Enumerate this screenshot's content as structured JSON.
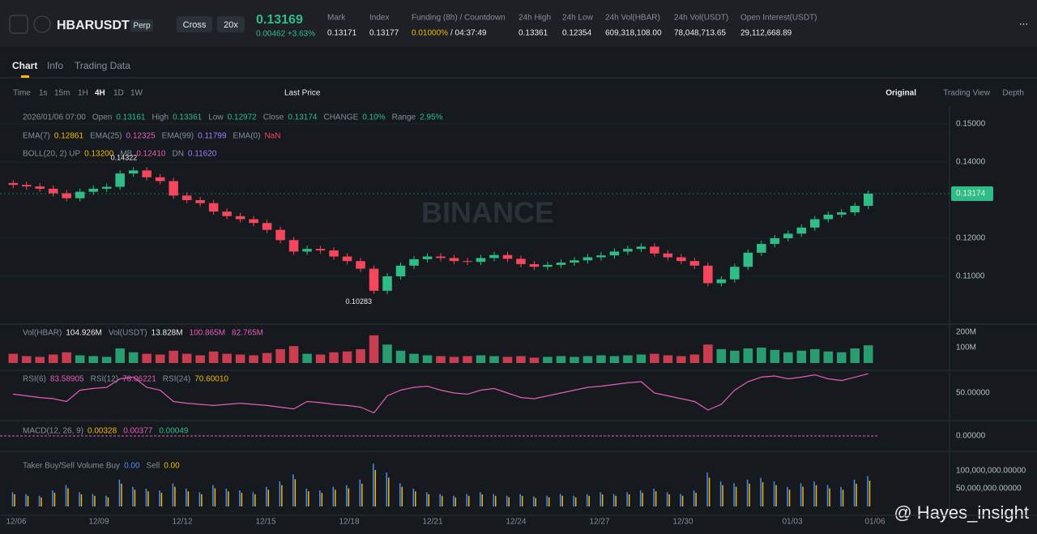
{
  "header": {
    "symbol": "HBARUSDT",
    "tag": "Perp",
    "margin": "Cross",
    "leverage": "20x",
    "price": "0.13169",
    "change": "0.00462 +3.63%",
    "stats": [
      {
        "label": "Mark",
        "value": "0.13171"
      },
      {
        "label": "Index",
        "value": "0.13177"
      },
      {
        "label": "Funding (8h) / Countdown",
        "value": "0.01000%",
        "value2": "/ 04:37:49"
      },
      {
        "label": "24h High",
        "value": "0.13361"
      },
      {
        "label": "24h Low",
        "value": "0.12354"
      },
      {
        "label": "24h Vol(HBAR)",
        "value": "609,318,108.00"
      },
      {
        "label": "24h Vol(USDT)",
        "value": "78,048,713.65"
      },
      {
        "label": "Open Interest(USDT)",
        "value": "29,112,668.89"
      }
    ]
  },
  "tabs": [
    "Chart",
    "Info",
    "Trading Data"
  ],
  "toolbar": {
    "intervals": [
      "Time",
      "1s",
      "15m",
      "1H",
      "4H",
      "1D",
      "1W"
    ],
    "price_type": "Last Price",
    "views": [
      "Original",
      "Trading View",
      "Depth"
    ]
  },
  "legend": {
    "date": "2026/01/06 07:00",
    "ohlc": [
      {
        "label": "Open",
        "value": "0.13161"
      },
      {
        "label": "High",
        "value": "0.13361"
      },
      {
        "label": "Low",
        "value": "0.12972"
      },
      {
        "label": "Close",
        "value": "0.13174"
      },
      {
        "label": "CHANGE",
        "value": "0.10%"
      },
      {
        "label": "Range",
        "value": "2.95%"
      }
    ],
    "ema": [
      {
        "label": "EMA(7)",
        "value": "0.12861"
      },
      {
        "label": "EMA(25)",
        "value": "0.12325"
      },
      {
        "label": "EMA(99)",
        "value": "0.11799"
      },
      {
        "label": "EMA(0)",
        "value": "NaN"
      }
    ],
    "boll": [
      {
        "label": "BOLL(20, 2)  UP",
        "value": "0.13200"
      },
      {
        "label": "MB",
        "value": "0.12410"
      },
      {
        "label": "DN",
        "value": "0.11620"
      }
    ]
  },
  "price": {
    "watermark": "BINANCE",
    "high_label": "0.14322",
    "low_label": "0.10283",
    "last_label": "0.13174",
    "axis": [
      {
        "value": 0.15,
        "label": "0.15000"
      },
      {
        "value": 0.14,
        "label": "0.14000"
      },
      {
        "value": 0.12,
        "label": "0.12000"
      },
      {
        "value": 0.11,
        "label": "0.11000"
      }
    ],
    "first_open": 0.1345,
    "closes": [
      0.134,
      0.1336,
      0.133,
      0.1318,
      0.1305,
      0.1322,
      0.133,
      0.1335,
      0.137,
      0.1378,
      0.136,
      0.135,
      0.1312,
      0.13,
      0.1292,
      0.127,
      0.1258,
      0.125,
      0.124,
      0.1222,
      0.1195,
      0.1165,
      0.1172,
      0.1168,
      0.1152,
      0.114,
      0.112,
      0.1062,
      0.11,
      0.1128,
      0.1145,
      0.1152,
      0.1148,
      0.114,
      0.1138,
      0.1148,
      0.1156,
      0.1146,
      0.1132,
      0.1125,
      0.113,
      0.1136,
      0.1142,
      0.115,
      0.1155,
      0.1165,
      0.1172,
      0.1178,
      0.116,
      0.115,
      0.114,
      0.1128,
      0.1082,
      0.1092,
      0.1125,
      0.1162,
      0.1185,
      0.12,
      0.1212,
      0.1228,
      0.125,
      0.1262,
      0.1268,
      0.1285,
      0.1317
    ]
  },
  "volume": {
    "legend": [
      {
        "label": "Vol(HBAR)",
        "value": "104.926M"
      },
      {
        "label": "Vol(USDT)",
        "value": "13.828M"
      },
      {
        "label": "",
        "value": "100.865M"
      },
      {
        "label": "",
        "value": "82.765M"
      }
    ],
    "axis": [
      {
        "value": 200,
        "label": "200M"
      },
      {
        "value": 100,
        "label": "100M"
      }
    ],
    "values": [
      60,
      45,
      40,
      55,
      70,
      50,
      45,
      40,
      95,
      70,
      60,
      55,
      80,
      60,
      50,
      75,
      60,
      55,
      50,
      65,
      90,
      110,
      60,
      55,
      70,
      75,
      90,
      180,
      120,
      80,
      60,
      50,
      45,
      40,
      45,
      50,
      45,
      40,
      45,
      35,
      40,
      45,
      40,
      45,
      50,
      45,
      50,
      55,
      60,
      50,
      45,
      55,
      120,
      90,
      80,
      95,
      100,
      85,
      70,
      80,
      90,
      75,
      70,
      95,
      115
    ]
  },
  "rsi": {
    "legend": [
      {
        "label": "RSI(6)",
        "value": "83.58905"
      },
      {
        "label": "RSI(12)",
        "value": "78.06221"
      },
      {
        "label": "RSI(24)",
        "value": "70.60010"
      }
    ],
    "axis": [
      {
        "value": 50,
        "label": "50.00000"
      }
    ],
    "values": [
      48,
      45,
      42,
      40,
      35,
      55,
      58,
      60,
      75,
      78,
      60,
      55,
      35,
      32,
      30,
      28,
      30,
      32,
      30,
      28,
      25,
      22,
      35,
      33,
      30,
      28,
      25,
      15,
      45,
      55,
      60,
      62,
      55,
      50,
      48,
      55,
      58,
      50,
      42,
      40,
      45,
      50,
      55,
      60,
      62,
      65,
      68,
      70,
      50,
      45,
      40,
      35,
      20,
      30,
      55,
      70,
      78,
      80,
      75,
      78,
      82,
      75,
      72,
      78,
      84
    ]
  },
  "macd": {
    "legend": [
      {
        "label": "MACD(12, 26, 9)",
        "value": "0.00328"
      },
      {
        "label": "",
        "value": "0.00377"
      },
      {
        "label": "",
        "value": "0.00049"
      }
    ],
    "axis": [
      {
        "value": 0,
        "label": "0.00000"
      }
    ]
  },
  "taker": {
    "legend": [
      {
        "label": "Taker Buy/Sell Volume  Buy",
        "value": "0.00"
      },
      {
        "label": "Sell",
        "value": "0.00"
      }
    ],
    "axis": [
      {
        "value": 100,
        "label": "100,000,000.00000"
      },
      {
        "value": 50,
        "label": "50,000,000.00000"
      }
    ],
    "values": [
      40,
      35,
      30,
      45,
      60,
      40,
      35,
      30,
      75,
      55,
      50,
      45,
      65,
      50,
      40,
      60,
      50,
      45,
      40,
      55,
      70,
      90,
      50,
      45,
      55,
      60,
      75,
      120,
      95,
      65,
      50,
      40,
      35,
      30,
      35,
      40,
      35,
      30,
      35,
      28,
      30,
      35,
      30,
      35,
      40,
      35,
      40,
      45,
      50,
      40,
      35,
      45,
      95,
      70,
      65,
      75,
      80,
      70,
      55,
      65,
      70,
      60,
      55,
      75,
      85
    ]
  },
  "dates": [
    "12/06",
    "12/09",
    "12/12",
    "12/15",
    "12/18",
    "12/21",
    "12/24",
    "12/27",
    "12/30",
    "01/03",
    "01/06"
  ],
  "watermark": "@ Hayes_insight"
}
